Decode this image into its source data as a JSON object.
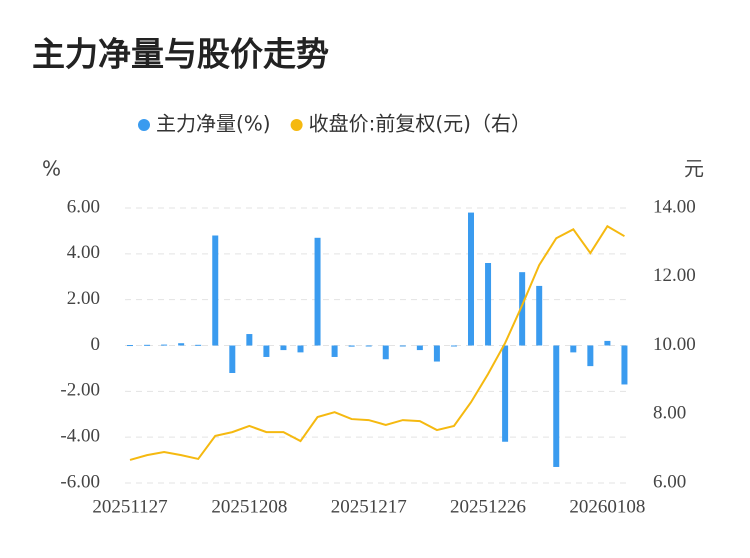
{
  "chart_data": {
    "type": "bar_line",
    "title": "主力净量与股价走势",
    "y_unit": "%",
    "y2_unit": "元",
    "categories": [
      "20251127",
      null,
      null,
      null,
      null,
      null,
      null,
      "20251208",
      null,
      null,
      null,
      null,
      null,
      null,
      "20251217",
      null,
      null,
      null,
      null,
      null,
      null,
      "20251226",
      null,
      null,
      null,
      null,
      null,
      null,
      "20260108",
      null
    ],
    "series": [
      {
        "name": "主力净量(%)",
        "color": "#3a9bef",
        "kind": "bar",
        "values": [
          0.02,
          0.03,
          0.04,
          0.1,
          0.03,
          4.8,
          -1.2,
          0.5,
          -0.5,
          -0.2,
          -0.3,
          4.7,
          -0.5,
          -0.05,
          -0.03,
          -0.6,
          -0.03,
          -0.2,
          -0.7,
          -0.03,
          5.8,
          3.6,
          -4.2,
          3.2,
          2.6,
          -5.3,
          -0.3,
          -0.9,
          0.2,
          -1.7
        ]
      },
      {
        "name": "收盘价:前复权(元)（右）",
        "color": "#f5b910",
        "kind": "line",
        "axis": "y2",
        "values": [
          6.67,
          6.81,
          6.9,
          6.81,
          6.7,
          7.37,
          7.48,
          7.66,
          7.48,
          7.48,
          7.22,
          7.92,
          8.06,
          7.86,
          7.83,
          7.69,
          7.83,
          7.8,
          7.54,
          7.66,
          8.35,
          9.17,
          10.07,
          11.17,
          12.34,
          13.12,
          13.38,
          12.69,
          13.47,
          13.18
        ]
      }
    ],
    "ylim": [
      -6,
      6
    ],
    "yticks": [
      {
        "value": -6,
        "label": "-6.00"
      },
      {
        "value": -4,
        "label": "-4.00"
      },
      {
        "value": -2,
        "label": "-2.00"
      },
      0,
      {
        "value": 2,
        "label": "2.00"
      },
      {
        "value": 4,
        "label": "4.00"
      },
      {
        "value": 6,
        "label": "6.00"
      }
    ],
    "y2lim": [
      6,
      14
    ],
    "y2ticks": [
      {
        "value": 6,
        "label": "6.00"
      },
      {
        "value": 8,
        "label": "8.00"
      },
      {
        "value": 10,
        "label": "10.00"
      },
      {
        "value": 12,
        "label": "12.00"
      },
      {
        "value": 14,
        "label": "14.00"
      }
    ],
    "grid": true
  }
}
